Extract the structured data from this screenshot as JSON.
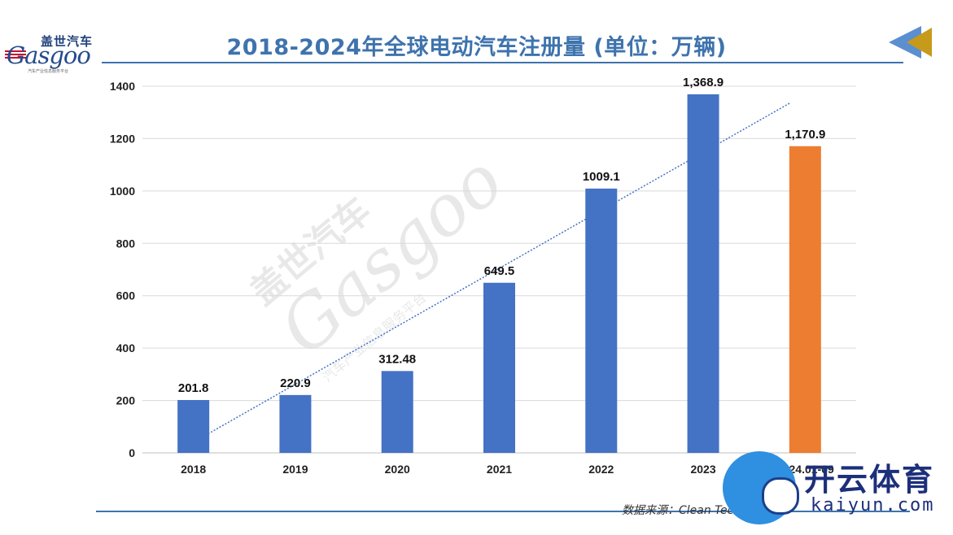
{
  "header": {
    "title": "2018-2024年全球电动汽车注册量 (单位：万辆)",
    "logo": {
      "cn_text": "盖世汽车",
      "en_text": "Gasgoo",
      "tagline": "汽车产业信息服务平台"
    }
  },
  "footer": {
    "source": "数据来源：Clean Technica"
  },
  "watermark": {
    "cn_text": "盖世汽车",
    "en_text": "Gasgoo",
    "tagline": "汽车产业信息服务平台"
  },
  "overlay": {
    "cn_text": "开云体育",
    "en_text": "kaiyun.com"
  },
  "colors": {
    "accent": "#3e73ad",
    "bar_default": "#4472c4",
    "bar_highlight": "#ed7d31",
    "trendline": "#4472c4"
  },
  "icons": {
    "nav_arrow": "back-arrow-icon"
  },
  "chart_data": {
    "type": "bar",
    "title": "2018-2024年全球电动汽车注册量 (单位：万辆)",
    "categories": [
      "2018",
      "2019",
      "2020",
      "2021",
      "2022",
      "2023",
      "2024.01-09"
    ],
    "values": [
      201.8,
      220.9,
      312.48,
      649.5,
      1009.1,
      1368.9,
      1170.9
    ],
    "data_labels": [
      "201.8",
      "220.9",
      "312.48",
      "649.5",
      "1009.1",
      "1,368.9",
      "1,170.9"
    ],
    "highlight_index": 6,
    "ylim": [
      0,
      1400
    ],
    "yticks": [
      0,
      200,
      400,
      600,
      800,
      1000,
      1200,
      1400
    ],
    "grid": true,
    "trendline": "linear",
    "legend": "none",
    "xlabel": "",
    "ylabel": ""
  }
}
